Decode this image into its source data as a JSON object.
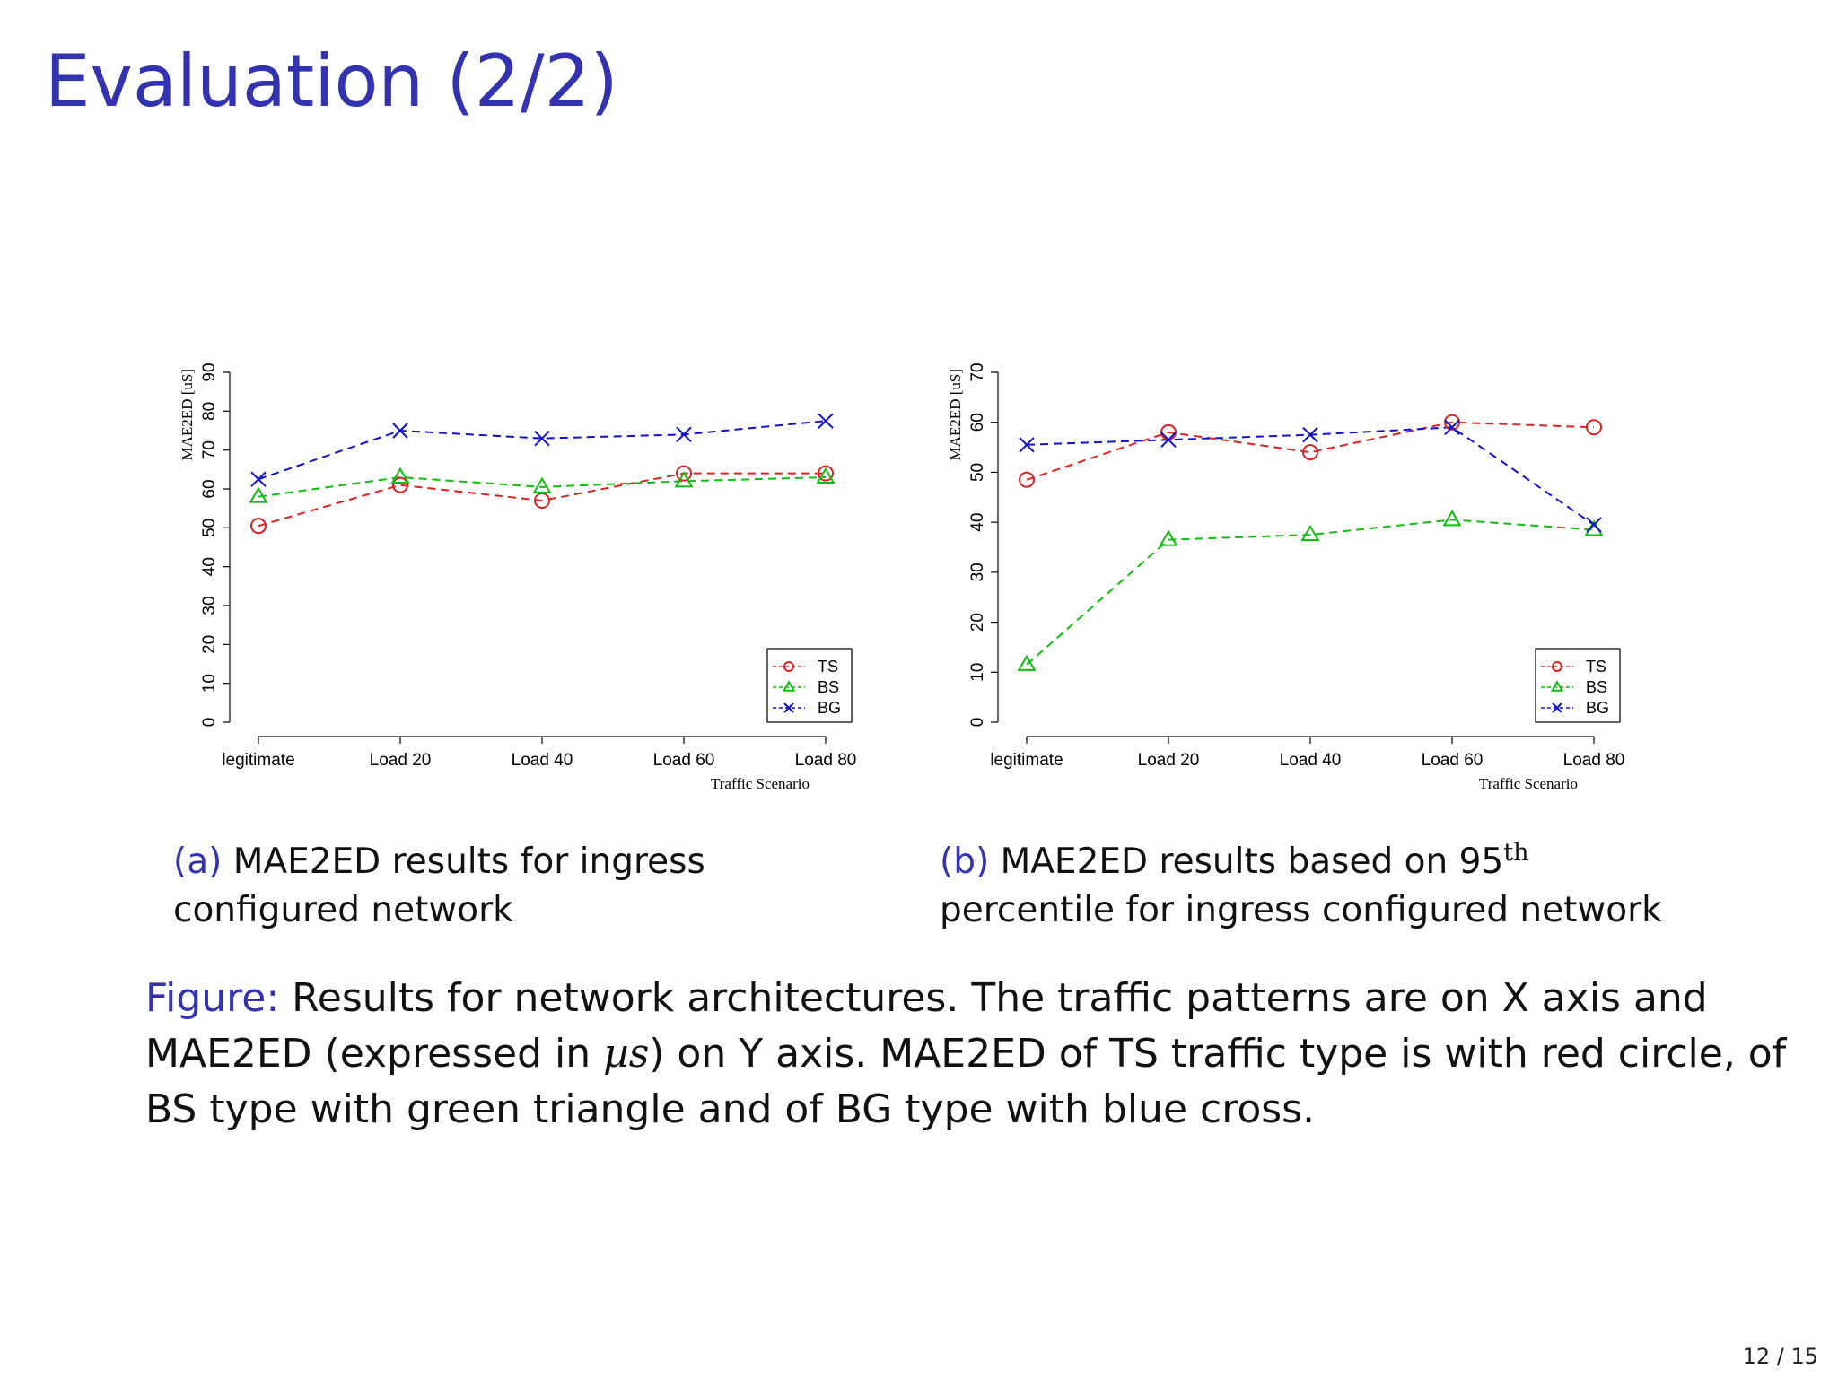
{
  "slide": {
    "title": "Evaluation (2/2)",
    "page_number": "12 / 15"
  },
  "captions": {
    "a_label": "(a)",
    "a_text": "MAE2ED results for ingress configured network",
    "b_label": "(b)",
    "b_text_before": "MAE2ED results based on 95",
    "b_sup": "th",
    "b_text_after": "percentile for ingress configured network"
  },
  "figure_caption": {
    "label": "Figure:",
    "text_1": "Results for network architectures. The traffic patterns are on X axis and MAE2ED (expressed in ",
    "math": "µs",
    "text_2": ") on Y axis. MAE2ED of TS traffic type is with red circle, of BS type with green triangle and of BG type with blue cross."
  },
  "colors": {
    "TS": "#dd2222",
    "BS": "#11bb11",
    "BG": "#1111cc",
    "accent": "#3333b2"
  },
  "chart_data": [
    {
      "type": "line",
      "categories": [
        "legitimate",
        "Load 20",
        "Load 40",
        "Load 60",
        "Load 80"
      ],
      "xlabel": "Traffic Scenario",
      "ylabel": "MAE2ED [uS]",
      "ylim": [
        0,
        90
      ],
      "yticks": [
        0,
        10,
        20,
        30,
        40,
        50,
        60,
        70,
        80,
        90
      ],
      "grid": false,
      "legend_position": "bottom-right",
      "series": [
        {
          "name": "TS",
          "marker": "circle",
          "color": "#dd2222",
          "values": [
            50.5,
            61,
            57,
            64,
            64
          ]
        },
        {
          "name": "BS",
          "marker": "triangle",
          "color": "#11bb11",
          "values": [
            58,
            63,
            60.5,
            62,
            63
          ]
        },
        {
          "name": "BG",
          "marker": "cross",
          "color": "#1111cc",
          "values": [
            62.5,
            75,
            73,
            74,
            77.5
          ]
        }
      ]
    },
    {
      "type": "line",
      "categories": [
        "legitimate",
        "Load 20",
        "Load 40",
        "Load 60",
        "Load 80"
      ],
      "xlabel": "Traffic Scenario",
      "ylabel": "MAE2ED [uS]",
      "ylim": [
        0,
        70
      ],
      "yticks": [
        0,
        10,
        20,
        30,
        40,
        50,
        60,
        70
      ],
      "grid": false,
      "legend_position": "bottom-right",
      "series": [
        {
          "name": "TS",
          "marker": "circle",
          "color": "#dd2222",
          "values": [
            48.5,
            58,
            54,
            60,
            59
          ]
        },
        {
          "name": "BS",
          "marker": "triangle",
          "color": "#11bb11",
          "values": [
            11.5,
            36.5,
            37.5,
            40.5,
            38.5
          ]
        },
        {
          "name": "BG",
          "marker": "cross",
          "color": "#1111cc",
          "values": [
            55.5,
            56.5,
            57.5,
            59,
            39.5
          ]
        }
      ]
    }
  ]
}
